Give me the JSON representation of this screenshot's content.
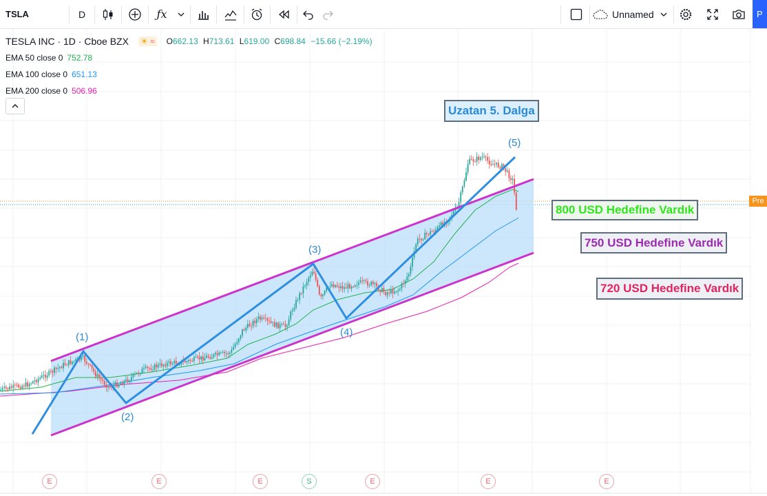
{
  "toolbar": {
    "symbol": "TSLA",
    "interval": "D",
    "layout_name": "Unnamed",
    "publish_partial": "P",
    "icons": [
      "candles-icon",
      "add-indicator-icon",
      "fx-icon",
      "chevron-down-icon",
      "bar-chart-icon",
      "compare-icon",
      "alert-icon",
      "replay-icon",
      "undo-icon",
      "redo-icon",
      "square-icon",
      "cloud-icon",
      "gear-icon",
      "fullscreen-icon",
      "camera-icon"
    ]
  },
  "legend": {
    "title": "TESLA INC · 1D · Cboe BZX",
    "ohlc": {
      "o_label": "O",
      "o": "662.13",
      "h_label": "H",
      "h": "713.61",
      "l_label": "L",
      "l": "619.00",
      "c_label": "C",
      "c": "698.84",
      "change": "−15.66 (−2.19%)"
    },
    "emas": [
      {
        "label": "EMA 50 close 0",
        "value": "752.78",
        "color": "#22b14c"
      },
      {
        "label": "EMA 100 close 0",
        "value": "651.13",
        "color": "#2196f3"
      },
      {
        "label": "EMA 200 close 0",
        "value": "506.96",
        "color": "#e91eb0"
      }
    ]
  },
  "annotations": {
    "title": "Uzatan 5. Dalga",
    "t800": "800 USD Hedefine Vardık",
    "t750": "750 USD Hedefine Vardık",
    "t720": "720 USD Hedefine Vardık",
    "waves": [
      "(1)",
      "(2)",
      "(3)",
      "(4)",
      "(5)"
    ]
  },
  "price_tag": "Pre",
  "events": [
    "E",
    "E",
    "E",
    "S",
    "E",
    "E",
    "E"
  ],
  "colors": {
    "channel": "#cc33cc",
    "channel_fill": "#bbdefb",
    "wave": "#2e8ee0",
    "up": "#26a69a",
    "down": "#ef5350",
    "ema50": "#22b14c",
    "ema100": "#2196f3",
    "ema200": "#e91eb0",
    "ann_title": "#2a8ad6",
    "ann_800": "#2ee61c",
    "ann_750": "#9c2bb0",
    "ann_720": "#e0245e"
  }
}
